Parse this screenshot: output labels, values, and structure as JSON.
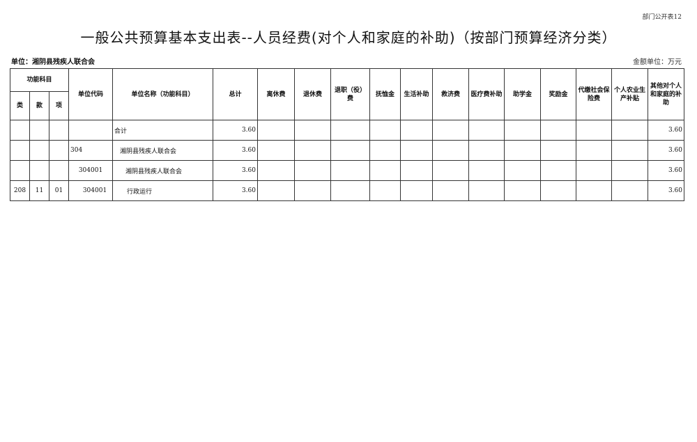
{
  "form_number": "部门公开表12",
  "title": "一般公共预算基本支出表--人员经费(对个人和家庭的补助)（按部门预算经济分类）",
  "unit_label": "单位：湘阴县残疾人联合会",
  "money_unit": "金额单位：万元",
  "headers": {
    "func_subject": "功能科目",
    "lei": "类",
    "kuan": "款",
    "xiang": "项",
    "unit_code": "单位代码",
    "unit_name": "单位名称（功能科目）",
    "columns": [
      "总计",
      "离休费",
      "退休费",
      "退职（役）费",
      "抚恤金",
      "生活补助",
      "救济费",
      "医疗费补助",
      "助学金",
      "奖励金",
      "代缴社会保险费",
      "个人农业生产补贴",
      "其他对个人和家庭的补助"
    ]
  },
  "rows": [
    {
      "lei": "",
      "kuan": "",
      "xiang": "",
      "code": "",
      "name": "合计",
      "values": [
        "3.60",
        "",
        "",
        "",
        "",
        "",
        "",
        "",
        "",
        "",
        "",
        "",
        "3.60"
      ]
    },
    {
      "lei": "",
      "kuan": "",
      "xiang": "",
      "code": "304",
      "name": "湘阴县残疾人联合会",
      "values": [
        "3.60",
        "",
        "",
        "",
        "",
        "",
        "",
        "",
        "",
        "",
        "",
        "",
        "3.60"
      ]
    },
    {
      "lei": "",
      "kuan": "",
      "xiang": "",
      "code": "304001",
      "name": "湘阴县残疾人联合会",
      "values": [
        "3.60",
        "",
        "",
        "",
        "",
        "",
        "",
        "",
        "",
        "",
        "",
        "",
        "3.60"
      ]
    },
    {
      "lei": "208",
      "kuan": "11",
      "xiang": "01",
      "code": "304001",
      "name": "行政运行",
      "values": [
        "3.60",
        "",
        "",
        "",
        "",
        "",
        "",
        "",
        "",
        "",
        "",
        "",
        "3.60"
      ]
    }
  ]
}
